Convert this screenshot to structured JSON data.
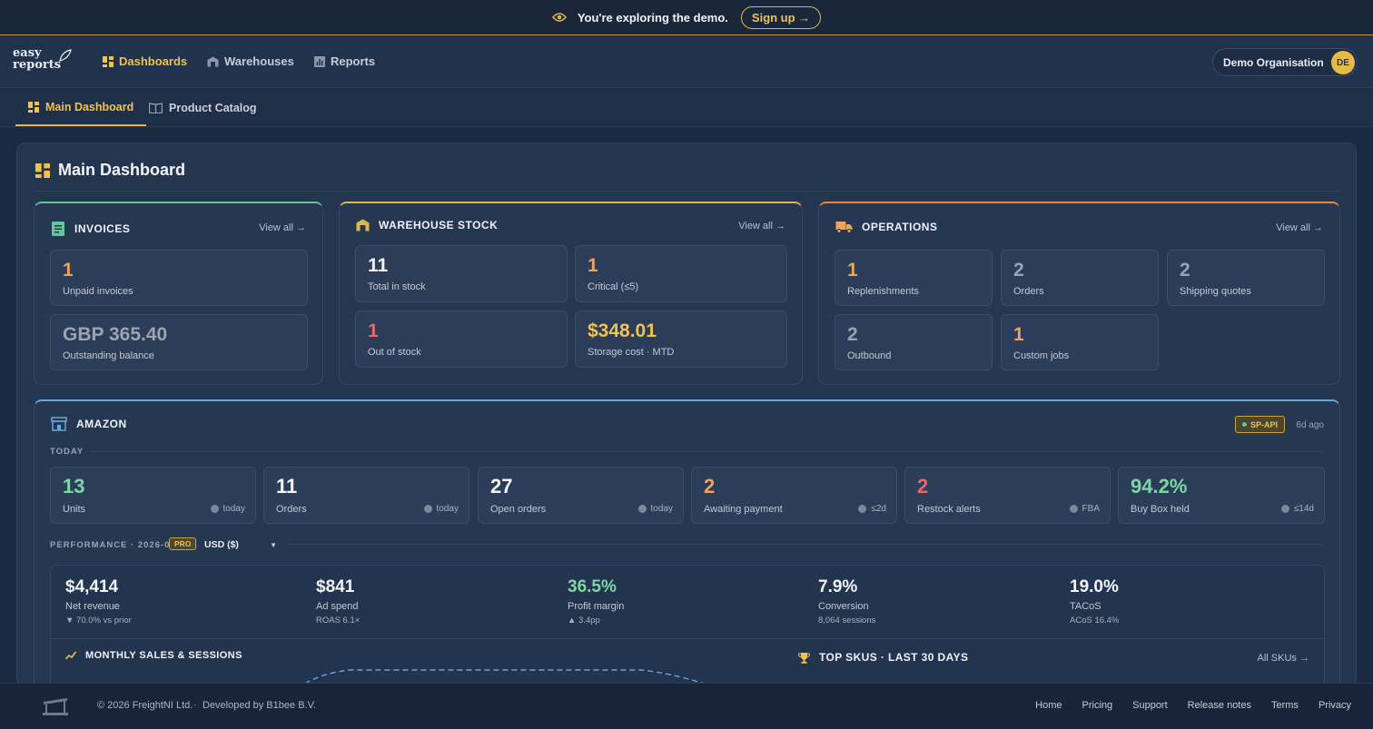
{
  "banner": {
    "message": "You're exploring the demo.",
    "signup_label": "Sign up →"
  },
  "brand": {
    "line1": "easy",
    "line2": "reports"
  },
  "nav": {
    "items": [
      {
        "label": "Dashboards"
      },
      {
        "label": "Warehouses"
      },
      {
        "label": "Reports"
      }
    ]
  },
  "org": {
    "name": "Demo Organisation",
    "avatar": "DE"
  },
  "subnav": {
    "tabs": [
      {
        "label": "Main Dashboard"
      },
      {
        "label": "Product Catalog"
      }
    ]
  },
  "page": {
    "title": "Main Dashboard"
  },
  "invoices": {
    "title": "INVOICES",
    "view_all": "View all →",
    "tiles": [
      {
        "value": "1",
        "label": "Unpaid invoices"
      },
      {
        "value": "GBP 365.40",
        "label": "Outstanding balance"
      }
    ]
  },
  "stock": {
    "title": "WAREHOUSE STOCK",
    "view_all": "View all →",
    "tiles": [
      {
        "value": "11",
        "label": "Total in stock"
      },
      {
        "value": "1",
        "label": "Critical (≤5)"
      },
      {
        "value": "1",
        "label": "Out of stock"
      },
      {
        "value": "$348.01",
        "label": "Storage cost · MTD"
      }
    ]
  },
  "operations": {
    "title": "OPERATIONS",
    "view_all": "View all →",
    "tiles": [
      {
        "value": "1",
        "label": "Replenishments"
      },
      {
        "value": "2",
        "label": "Orders"
      },
      {
        "value": "2",
        "label": "Shipping quotes"
      },
      {
        "value": "2",
        "label": "Outbound"
      },
      {
        "value": "1",
        "label": "Custom jobs"
      }
    ]
  },
  "amazon": {
    "title": "AMAZON",
    "badge": "SP-API",
    "synced": "6d ago",
    "today_label": "TODAY",
    "kpis": [
      {
        "value": "13",
        "label": "Units",
        "note": "today"
      },
      {
        "value": "11",
        "label": "Orders",
        "note": "today"
      },
      {
        "value": "27",
        "label": "Open orders",
        "note": "today"
      },
      {
        "value": "2",
        "label": "Awaiting payment",
        "note": "≤2d"
      },
      {
        "value": "2",
        "label": "Restock alerts",
        "note": "FBA"
      },
      {
        "value": "94.2%",
        "label": "Buy Box held",
        "note": "≤14d"
      }
    ],
    "performance": {
      "label": "PERFORMANCE · 2026-09",
      "pro": "PRO",
      "currency": "USD ($)",
      "metrics": [
        {
          "value": "$4,414",
          "label": "Net revenue",
          "sub": "▼ 70.0% vs prior"
        },
        {
          "value": "$841",
          "label": "Ad spend",
          "sub": "ROAS 6.1×"
        },
        {
          "value": "36.5%",
          "label": "Profit margin",
          "sub": "▲ 3.4pp"
        },
        {
          "value": "7.9%",
          "label": "Conversion",
          "sub": "8,064 sessions"
        },
        {
          "value": "19.0%",
          "label": "TACoS",
          "sub": "ACoS 16.4%"
        }
      ],
      "sales_title": "MONTHLY SALES & SESSIONS",
      "skus_title": "TOP SKUS · LAST 30 DAYS",
      "skus_link": "All SKUs →"
    }
  },
  "footer": {
    "copyright": "© 2026 FreightNI Ltd.",
    "separator": "·",
    "developer": "Developed by B1bee B.V.",
    "links": [
      {
        "label": "Home"
      },
      {
        "label": "Pricing"
      },
      {
        "label": "Support"
      },
      {
        "label": "Release notes"
      },
      {
        "label": "Terms"
      },
      {
        "label": "Privacy"
      }
    ]
  },
  "colors": {
    "accent": "#f0c24e",
    "background": "#1b2a41",
    "positive": "#7ed6a6",
    "negative": "#e46a6a"
  }
}
